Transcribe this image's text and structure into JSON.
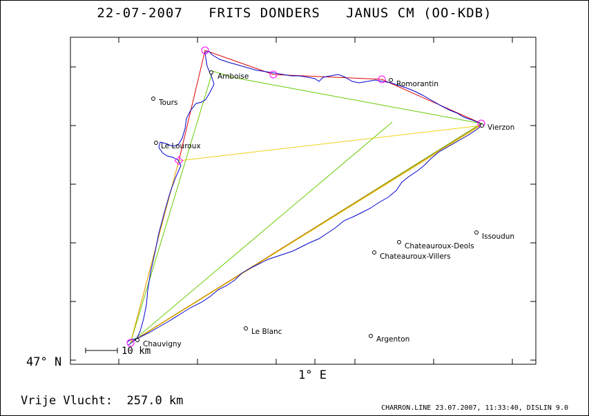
{
  "header": {
    "title": "22-07-2007   FRITS DONDERS   JANUS CM (OO-KDB)"
  },
  "axes": {
    "lat_label": "47° N",
    "lon_label": "1° E"
  },
  "scale_bar": {
    "label": "10 km"
  },
  "places": [
    {
      "name": "Amboise"
    },
    {
      "name": "Tours"
    },
    {
      "name": "Le Louroux"
    },
    {
      "name": "Romorantin"
    },
    {
      "name": "Vierzon"
    },
    {
      "name": "Issoudun"
    },
    {
      "name": "Chateauroux-Deols"
    },
    {
      "name": "Chateauroux-Villers"
    },
    {
      "name": "Le Blanc"
    },
    {
      "name": "Argenton"
    },
    {
      "name": "Chauvigny"
    }
  ],
  "footer": {
    "distance": "Vrije Vlucht:  257.0 km",
    "credit": "CHARRON.LINE 23.07.2007, 11:33:40, DISLIN 9.0"
  },
  "colors": {
    "track": "#0000cc",
    "task_red": "#dd0000",
    "task_green": "#66cc00",
    "task_yellow": "#eecc00",
    "turnpoint": "#ff00ff"
  }
}
